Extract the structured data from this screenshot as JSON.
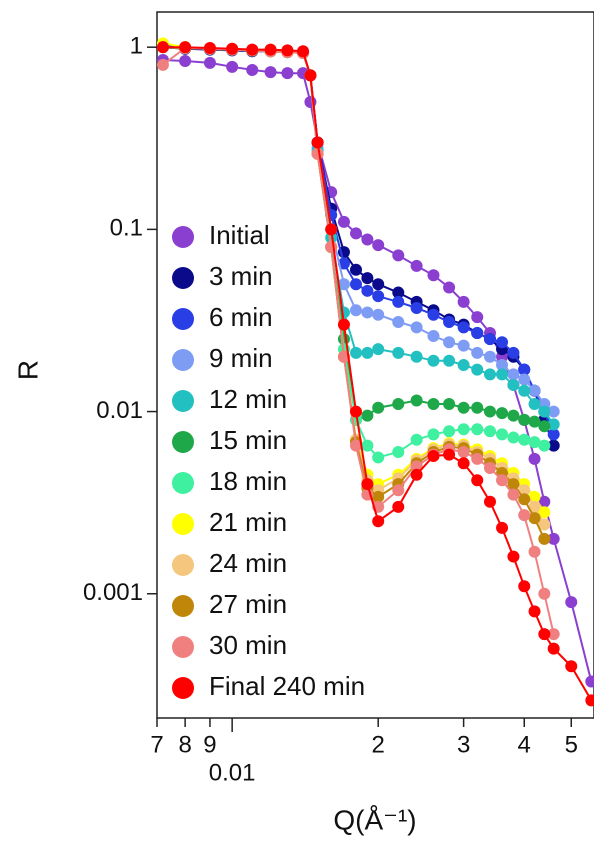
{
  "chart_data": {
    "type": "line",
    "x_label": "Q(Å⁻¹)",
    "y_label": "R",
    "xscale": "log",
    "yscale": "log",
    "xlim": [
      0.007,
      0.0557
    ],
    "ylim": [
      0.000208,
      1.56
    ],
    "xticks": [
      {
        "value": 0.007,
        "label": "7"
      },
      {
        "value": 0.008,
        "label": "8"
      },
      {
        "value": 0.009,
        "label": "9"
      },
      0.01,
      {
        "value": 0.02,
        "label": "2"
      },
      {
        "value": 0.03,
        "label": "3"
      },
      {
        "value": 0.04,
        "label": "4"
      },
      {
        "value": 0.05,
        "label": "5"
      }
    ],
    "yticks": [
      0.001,
      0.01,
      0.1,
      1
    ],
    "legend": "left",
    "x": [
      0.0072,
      0.008,
      0.009,
      0.01,
      0.011,
      0.012,
      0.013,
      0.014,
      0.0145,
      0.015,
      0.016,
      0.017,
      0.018,
      0.019,
      0.02,
      0.022,
      0.024,
      0.026,
      0.028,
      0.03,
      0.032,
      0.034,
      0.036,
      0.038,
      0.04,
      0.042,
      0.044,
      0.046,
      0.05,
      0.055
    ],
    "series": [
      {
        "name": "Initial",
        "color": "#8a3fd1",
        "values": [
          0.85,
          0.84,
          0.82,
          0.78,
          0.75,
          0.73,
          0.72,
          0.72,
          0.5,
          0.3,
          0.16,
          0.11,
          0.095,
          0.088,
          0.082,
          0.072,
          0.063,
          0.056,
          0.048,
          0.04,
          0.033,
          0.027,
          0.02,
          0.014,
          0.009,
          0.0055,
          0.0032,
          0.002,
          0.0009,
          0.00033
        ]
      },
      {
        "name": "3 min",
        "color": "#0a0a8a",
        "values": [
          1.0,
          0.98,
          0.97,
          0.96,
          0.95,
          0.95,
          0.94,
          0.93,
          0.7,
          0.3,
          0.13,
          0.075,
          0.06,
          0.054,
          0.05,
          0.045,
          0.04,
          0.036,
          0.032,
          0.03,
          0.027,
          0.025,
          0.022,
          0.02,
          0.017,
          0.013,
          0.009,
          0.0065,
          null,
          null
        ]
      },
      {
        "name": "6 min",
        "color": "#2a3ee6",
        "values": [
          1.02,
          0.99,
          0.98,
          0.97,
          0.96,
          0.95,
          0.94,
          0.93,
          0.7,
          0.3,
          0.12,
          0.065,
          0.05,
          0.046,
          0.043,
          0.04,
          0.037,
          0.034,
          0.031,
          0.029,
          0.027,
          0.025,
          0.024,
          0.021,
          0.017,
          0.013,
          0.01,
          0.0075,
          null,
          null
        ]
      },
      {
        "name": "9 min",
        "color": "#7f9cf5",
        "values": [
          1.0,
          0.99,
          0.98,
          0.97,
          0.96,
          0.95,
          0.94,
          0.93,
          0.7,
          0.28,
          0.1,
          0.05,
          0.036,
          0.035,
          0.034,
          0.031,
          0.029,
          0.026,
          0.024,
          0.023,
          0.021,
          0.02,
          0.018,
          0.016,
          0.015,
          0.013,
          0.011,
          0.01,
          null,
          null
        ]
      },
      {
        "name": "12 min",
        "color": "#22c0c0",
        "values": [
          1.0,
          0.99,
          0.98,
          0.97,
          0.96,
          0.95,
          0.94,
          0.93,
          0.7,
          0.27,
          0.09,
          0.035,
          0.021,
          0.021,
          0.022,
          0.021,
          0.02,
          0.019,
          0.019,
          0.018,
          0.017,
          0.016,
          0.016,
          0.014,
          0.013,
          0.011,
          0.01,
          0.0085,
          null,
          null
        ]
      },
      {
        "name": "15 min",
        "color": "#1fa84a",
        "values": [
          1.0,
          0.99,
          0.98,
          0.97,
          0.96,
          0.95,
          0.94,
          0.93,
          0.7,
          0.26,
          0.08,
          0.025,
          0.009,
          0.0095,
          0.0105,
          0.011,
          0.0115,
          0.011,
          0.011,
          0.0105,
          0.0105,
          0.01,
          0.0098,
          0.0095,
          0.009,
          0.0088,
          0.0083,
          null,
          null,
          null
        ]
      },
      {
        "name": "18 min",
        "color": "#3ef0a0",
        "values": [
          1.0,
          0.99,
          0.98,
          0.97,
          0.96,
          0.95,
          0.94,
          0.93,
          0.7,
          0.26,
          0.08,
          0.022,
          0.009,
          0.0065,
          0.0056,
          0.006,
          0.007,
          0.0075,
          0.0078,
          0.008,
          0.008,
          0.0078,
          0.0075,
          0.0072,
          0.007,
          0.0068,
          0.0065,
          null,
          null,
          null
        ]
      },
      {
        "name": "21 min",
        "color": "#ffff00",
        "values": [
          1.05,
          1.0,
          0.98,
          0.97,
          0.96,
          0.95,
          0.94,
          0.93,
          0.7,
          0.26,
          0.08,
          0.02,
          0.007,
          0.0045,
          0.004,
          0.0045,
          0.0055,
          0.0063,
          0.0067,
          0.0066,
          0.0062,
          0.0057,
          0.0052,
          0.0046,
          0.004,
          0.0034,
          0.0028,
          null,
          null,
          null
        ]
      },
      {
        "name": "24 min",
        "color": "#f5c77e",
        "values": [
          1.0,
          0.99,
          0.98,
          0.97,
          0.96,
          0.95,
          0.94,
          0.93,
          0.7,
          0.26,
          0.08,
          0.02,
          0.007,
          0.0042,
          0.0037,
          0.0043,
          0.0054,
          0.0062,
          0.0066,
          0.0065,
          0.006,
          0.0055,
          0.0049,
          0.0043,
          0.0037,
          0.003,
          0.0024,
          null,
          null,
          null
        ]
      },
      {
        "name": "27 min",
        "color": "#c0860a",
        "values": [
          1.0,
          0.99,
          0.98,
          0.97,
          0.96,
          0.95,
          0.94,
          0.93,
          0.7,
          0.26,
          0.08,
          0.02,
          0.0068,
          0.0038,
          0.0034,
          0.004,
          0.0052,
          0.006,
          0.0064,
          0.0063,
          0.0058,
          0.0052,
          0.0046,
          0.004,
          0.0033,
          0.0026,
          0.002,
          null,
          null,
          null
        ]
      },
      {
        "name": "30 min",
        "color": "#f08080",
        "values": [
          0.8,
          0.99,
          0.98,
          0.97,
          0.96,
          0.95,
          0.94,
          0.93,
          0.7,
          0.26,
          0.08,
          0.02,
          0.0065,
          0.0035,
          0.003,
          0.0037,
          0.005,
          0.0058,
          0.0062,
          0.006,
          0.0055,
          0.0049,
          0.0042,
          0.0035,
          0.0027,
          0.0017,
          0.001,
          0.0006,
          null,
          null
        ]
      },
      {
        "name": "Final 240 min",
        "color": "#ff0000",
        "values": [
          1.0,
          1.0,
          0.99,
          0.98,
          0.97,
          0.97,
          0.96,
          0.95,
          0.7,
          0.3,
          0.1,
          0.03,
          0.01,
          0.004,
          0.0025,
          0.003,
          0.0045,
          0.0057,
          0.0058,
          0.0052,
          0.0042,
          0.0032,
          0.0023,
          0.0016,
          0.0011,
          0.0008,
          0.0006,
          0.0005,
          0.0004,
          0.00026
        ]
      }
    ]
  }
}
